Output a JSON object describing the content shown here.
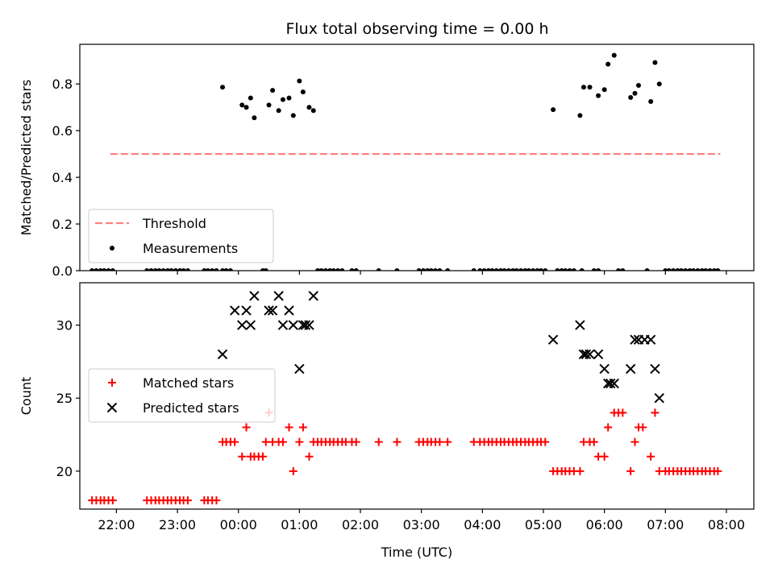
{
  "chart_data": [
    {
      "type": "scatter",
      "title": "Flux total observing time = 0.00 h",
      "xlabel": "",
      "ylabel": "Matched/Predicted stars",
      "xlim": [
        -2.6,
        8.45
      ],
      "ylim": [
        0,
        0.97
      ],
      "grid": false,
      "legend_placement": "lower-left",
      "yticks": [
        0.0,
        0.2,
        0.4,
        0.6,
        0.8
      ],
      "ytick_labels": [
        "0.0",
        "0.2",
        "0.4",
        "0.6",
        "0.8"
      ],
      "xticks": [
        -2,
        -1,
        0,
        1,
        2,
        3,
        4,
        5,
        6,
        7,
        8
      ],
      "series": [
        {
          "name": "Threshold",
          "style": "dashed-line",
          "color": "#ff7f7f",
          "x": [
            -2.1,
            7.9
          ],
          "y": [
            0.5,
            0.5
          ]
        },
        {
          "name": "Measurements",
          "style": "dot",
          "color": "#000000",
          "x": [
            -2.4,
            -2.33,
            -2.26,
            -2.2,
            -2.13,
            -2.06,
            -1.5,
            -1.43,
            -1.36,
            -1.3,
            -1.23,
            -1.16,
            -1.1,
            -1.03,
            -0.96,
            -0.9,
            -0.83,
            -0.56,
            -0.5,
            -0.43,
            -0.36,
            -0.2,
            -0.13,
            -0.26,
            0.4,
            0.45,
            1.3,
            1.36,
            1.43,
            1.5,
            1.56,
            1.63,
            1.7,
            1.86,
            1.93,
            2.3,
            2.6,
            2.96,
            3.03,
            3.1,
            3.16,
            3.23,
            3.3,
            3.43,
            3.86,
            3.96,
            4.03,
            4.1,
            4.16,
            4.23,
            4.3,
            4.36,
            4.43,
            4.5,
            4.56,
            4.63,
            4.7,
            4.76,
            4.83,
            4.9,
            4.96,
            5.03,
            5.23,
            5.3,
            5.36,
            5.43,
            5.5,
            5.63,
            5.83,
            5.9,
            6.23,
            6.3,
            6.7,
            7.0,
            7.06,
            7.13,
            7.2,
            7.26,
            7.33,
            7.4,
            7.46,
            7.53,
            7.6,
            7.66,
            7.73,
            7.8,
            7.86,
            -0.26,
            0.06,
            0.13,
            0.2,
            0.26,
            0.5,
            0.56,
            0.66,
            0.73,
            0.83,
            0.9,
            1.0,
            1.06,
            1.16,
            1.23,
            5.16,
            5.6,
            5.66,
            5.76,
            5.9,
            6.0,
            6.06,
            6.16,
            6.43,
            6.5,
            6.56,
            6.76,
            6.83,
            6.9
          ],
          "y": [
            0,
            0,
            0,
            0,
            0,
            0,
            0,
            0,
            0,
            0,
            0,
            0,
            0,
            0,
            0,
            0,
            0,
            0,
            0,
            0,
            0,
            0,
            0,
            0,
            0,
            0,
            0,
            0,
            0,
            0,
            0,
            0,
            0,
            0,
            0,
            0,
            0,
            0,
            0,
            0,
            0,
            0,
            0,
            0,
            0,
            0,
            0,
            0,
            0,
            0,
            0,
            0,
            0,
            0,
            0,
            0,
            0,
            0,
            0,
            0,
            0,
            0,
            0,
            0,
            0,
            0,
            0,
            0,
            0,
            0,
            0,
            0,
            0,
            0,
            0,
            0,
            0,
            0,
            0,
            0,
            0,
            0,
            0,
            0,
            0,
            0,
            0,
            0.786,
            0.71,
            0.7,
            0.74,
            0.655,
            0.71,
            0.773,
            0.686,
            0.733,
            0.74,
            0.665,
            0.813,
            0.766,
            0.7,
            0.686,
            0.69,
            0.665,
            0.786,
            0.786,
            0.75,
            0.776,
            0.885,
            0.923,
            0.742,
            0.76,
            0.794,
            0.725,
            0.892,
            0.8
          ]
        }
      ]
    },
    {
      "type": "scatter",
      "title": "",
      "xlabel": "Time (UTC)",
      "ylabel": "Count",
      "xlim": [
        -2.6,
        8.45
      ],
      "ylim": [
        17.4,
        32.9
      ],
      "grid": false,
      "legend_placement": "center-left",
      "yticks": [
        20,
        25,
        30
      ],
      "ytick_labels": [
        "20",
        "25",
        "30"
      ],
      "xticks": [
        -2,
        -1,
        0,
        1,
        2,
        3,
        4,
        5,
        6,
        7,
        8
      ],
      "xtick_labels": [
        "22:00",
        "23:00",
        "00:00",
        "01:00",
        "02:00",
        "03:00",
        "04:00",
        "05:00",
        "06:00",
        "07:00",
        "08:00"
      ],
      "series": [
        {
          "name": "Matched stars",
          "style": "plus",
          "color": "#ff0000",
          "x": [
            -2.4,
            -2.33,
            -2.26,
            -2.2,
            -2.13,
            -2.06,
            -1.5,
            -1.43,
            -1.36,
            -1.3,
            -1.23,
            -1.16,
            -1.1,
            -1.03,
            -0.96,
            -0.9,
            -0.83,
            -0.56,
            -0.5,
            -0.43,
            -0.36,
            -0.26,
            -0.2,
            -0.13,
            -0.06,
            0.06,
            0.13,
            0.2,
            0.26,
            0.33,
            0.4,
            0.45,
            0.5,
            0.56,
            0.66,
            0.73,
            0.83,
            0.9,
            1.0,
            1.06,
            1.16,
            1.23,
            1.3,
            1.36,
            1.43,
            1.5,
            1.56,
            1.63,
            1.7,
            1.76,
            1.86,
            1.93,
            2.3,
            2.6,
            2.96,
            3.03,
            3.1,
            3.16,
            3.23,
            3.3,
            3.43,
            3.86,
            3.96,
            4.03,
            4.1,
            4.16,
            4.23,
            4.3,
            4.36,
            4.43,
            4.5,
            4.56,
            4.63,
            4.7,
            4.76,
            4.83,
            4.9,
            4.96,
            5.03,
            5.16,
            5.23,
            5.3,
            5.36,
            5.43,
            5.5,
            5.6,
            5.66,
            5.76,
            5.83,
            5.9,
            6.0,
            6.06,
            6.16,
            6.23,
            6.3,
            6.43,
            6.5,
            6.56,
            6.63,
            6.76,
            6.83,
            6.9,
            7.0,
            7.06,
            7.13,
            7.2,
            7.26,
            7.33,
            7.4,
            7.46,
            7.53,
            7.6,
            7.66,
            7.73,
            7.8,
            7.86
          ],
          "y": [
            18,
            18,
            18,
            18,
            18,
            18,
            18,
            18,
            18,
            18,
            18,
            18,
            18,
            18,
            18,
            18,
            18,
            18,
            18,
            18,
            18,
            22,
            22,
            22,
            22,
            21,
            23,
            21,
            21,
            21,
            21,
            22,
            24,
            22,
            22,
            22,
            23,
            20,
            22,
            23,
            21,
            22,
            22,
            22,
            22,
            22,
            22,
            22,
            22,
            22,
            22,
            22,
            22,
            22,
            22,
            22,
            22,
            22,
            22,
            22,
            22,
            22,
            22,
            22,
            22,
            22,
            22,
            22,
            22,
            22,
            22,
            22,
            22,
            22,
            22,
            22,
            22,
            22,
            22,
            20,
            20,
            20,
            20,
            20,
            20,
            20,
            22,
            22,
            22,
            21,
            21,
            23,
            24,
            24,
            24,
            20,
            22,
            23,
            23,
            21,
            24,
            20,
            20,
            20,
            20,
            20,
            20,
            20,
            20,
            20,
            20,
            20,
            20,
            20,
            20,
            20
          ]
        },
        {
          "name": "Predicted stars",
          "style": "x",
          "color": "#000000",
          "x": [
            -0.26,
            -0.06,
            0.06,
            0.13,
            0.2,
            0.26,
            0.5,
            0.56,
            0.66,
            0.73,
            0.83,
            0.9,
            1.0,
            1.06,
            1.1,
            1.16,
            1.23,
            5.16,
            5.6,
            5.66,
            5.7,
            5.76,
            5.9,
            6.0,
            6.06,
            6.1,
            6.16,
            6.43,
            6.5,
            6.56,
            6.66,
            6.76,
            6.83,
            6.9
          ],
          "y": [
            28,
            31,
            30,
            31,
            30,
            32,
            31,
            31,
            32,
            30,
            31,
            30,
            27,
            30,
            30,
            30,
            32,
            29,
            30,
            28,
            28,
            28,
            28,
            27,
            26,
            26,
            26,
            27,
            29,
            29,
            29,
            29,
            27,
            25
          ]
        }
      ]
    }
  ]
}
